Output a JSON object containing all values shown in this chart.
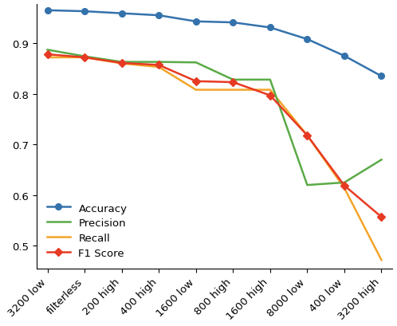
{
  "x_labels": [
    "3200 low",
    "filterless",
    "200 high",
    "400 high",
    "1600 low",
    "800 high",
    "1600 high",
    "8000 low",
    "400 low",
    "3200 high"
  ],
  "accuracy": [
    0.965,
    0.963,
    0.959,
    0.955,
    0.943,
    0.941,
    0.931,
    0.908,
    0.875,
    0.835
  ],
  "precision": [
    0.887,
    0.874,
    0.863,
    0.863,
    0.862,
    0.828,
    0.828,
    0.62,
    0.625,
    0.67
  ],
  "recall": [
    0.872,
    0.872,
    0.86,
    0.853,
    0.808,
    0.808,
    0.808,
    0.718,
    0.614,
    0.472
  ],
  "f1": [
    0.878,
    0.872,
    0.861,
    0.857,
    0.825,
    0.823,
    0.797,
    0.718,
    0.619,
    0.557
  ],
  "accuracy_color": "#3472ac",
  "precision_color": "#5aaa46",
  "recall_color": "#f4a428",
  "f1_color": "#e63a23",
  "ylim": [
    0.455,
    0.978
  ],
  "yticks": [
    0.5,
    0.6,
    0.7,
    0.8,
    0.9
  ],
  "legend_labels": [
    "Accuracy",
    "Precision",
    "Recall",
    "F1 Score"
  ],
  "background_color": "#ffffff"
}
